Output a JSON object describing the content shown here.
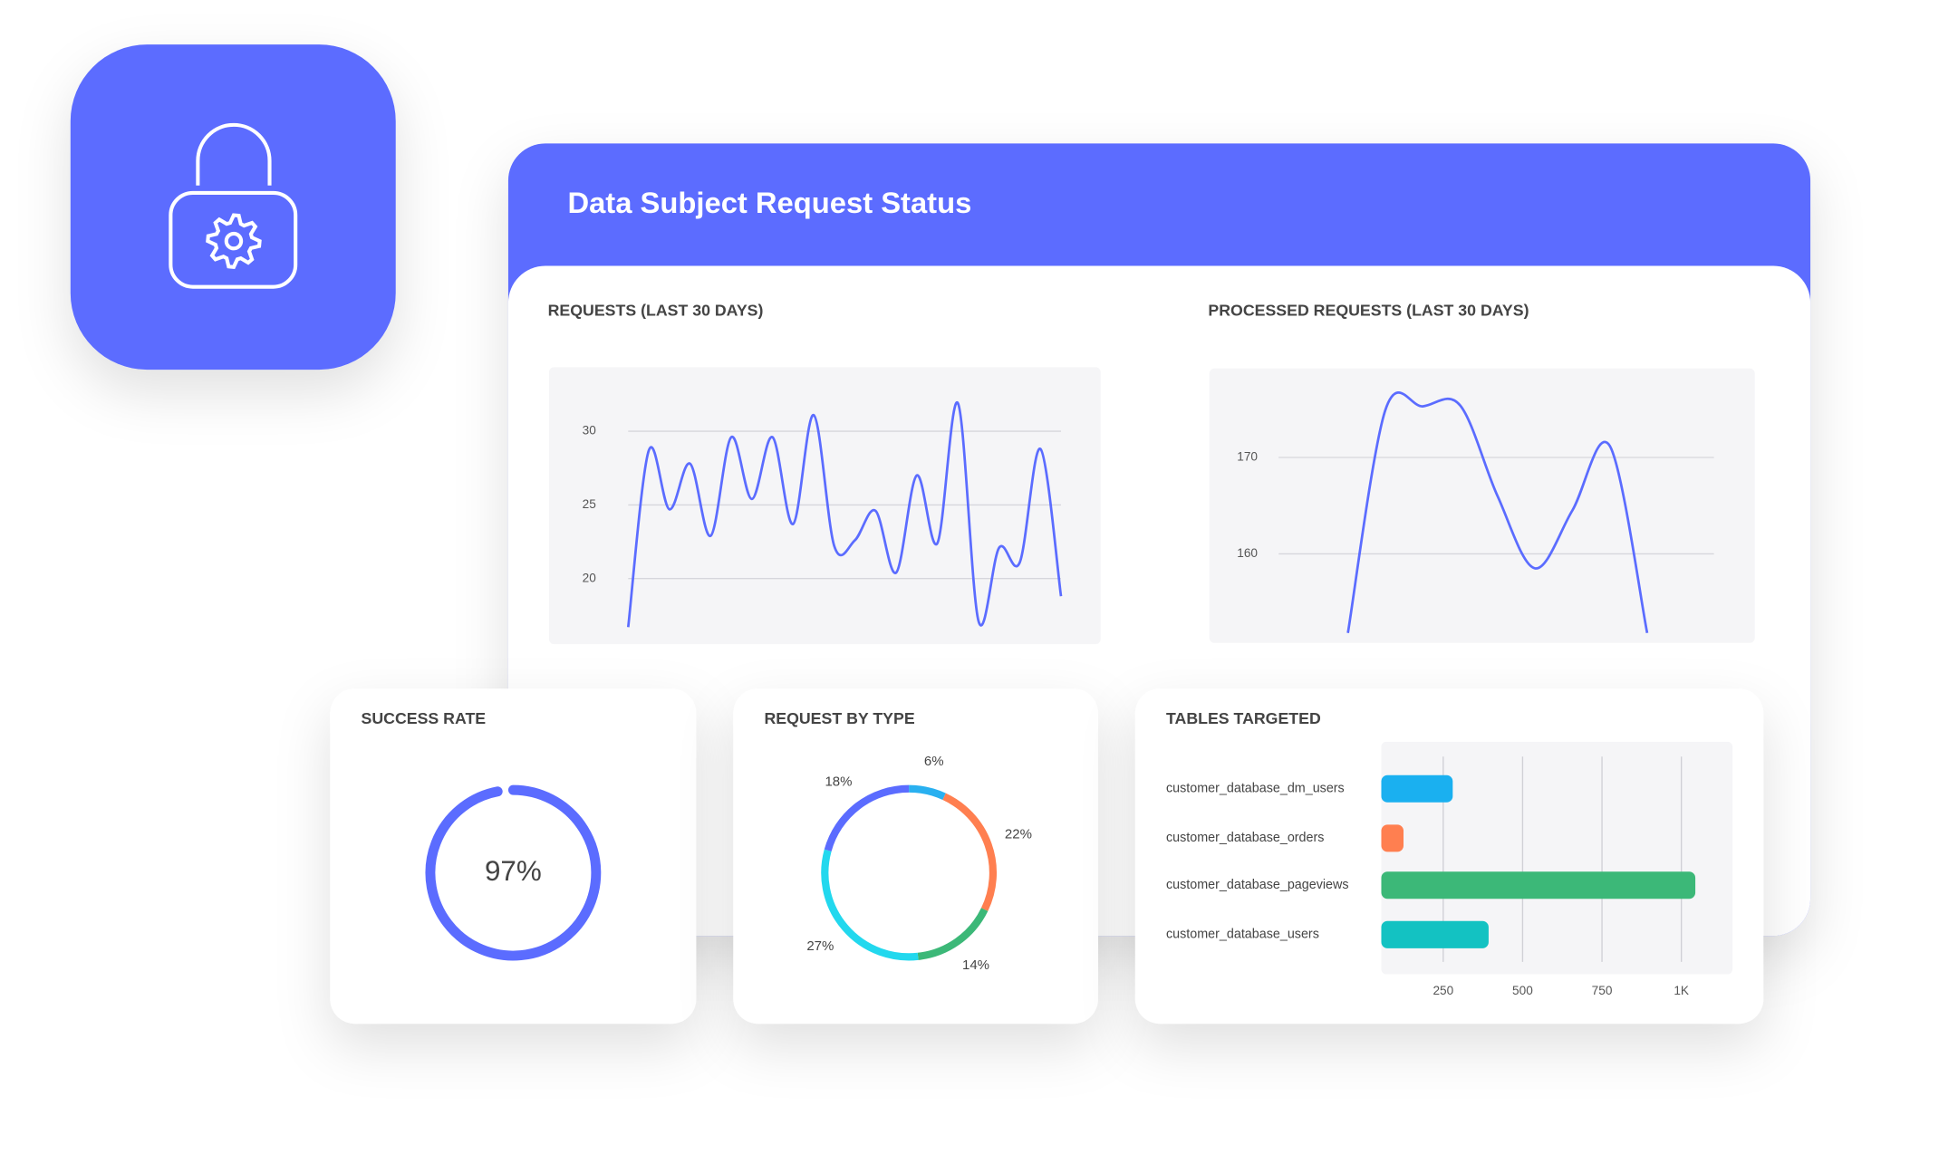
{
  "header": {
    "title": "Data Subject Request Status"
  },
  "chart_data": [
    {
      "type": "line",
      "title": "REQUESTS (LAST 30 DAYS)",
      "color": "#5b6cff",
      "values": [
        16.7,
        28.7,
        24.7,
        27.8,
        22.9,
        29.6,
        25.4,
        29.6,
        23.7,
        31.1,
        22.2,
        22.6,
        24.6,
        20.4,
        27.0,
        22.4,
        31.9,
        17.1,
        22.1,
        21.1,
        28.8,
        18.8
      ],
      "ylim": [
        16,
        32
      ],
      "yticks": [
        20,
        25,
        30
      ],
      "grid": true
    },
    {
      "type": "line",
      "title": "PROCESSED REQUESTS (LAST 30 DAYS)",
      "color": "#5b6cff",
      "values": [
        151.8,
        174.9,
        175.3,
        175.4,
        166,
        158.5,
        164.5,
        171.2,
        151.8
      ],
      "ylim": [
        151,
        177
      ],
      "yticks": [
        160,
        170
      ],
      "grid": true
    },
    {
      "type": "gauge",
      "title": "SUCCESS RATE",
      "color": "#5b6cff",
      "values": [
        97
      ],
      "value_labels": [
        "97%"
      ],
      "ylim": [
        0,
        100
      ]
    },
    {
      "type": "donut",
      "title": "REQUEST BY TYPE",
      "values": [
        6,
        22,
        14,
        27,
        18
      ],
      "value_labels": [
        "6%",
        "22%",
        "14%",
        "27%",
        "18%"
      ],
      "colors": [
        "#29b0f0",
        "#ff7f50",
        "#3cb878",
        "#22d8ee",
        "#5b6cff"
      ]
    },
    {
      "type": "hbar",
      "title": "TABLES TARGETED",
      "categories": [
        "customer_database_dm_users",
        "customer_database_orders",
        "customer_database_pageviews",
        "customer_database_users"
      ],
      "values": [
        280,
        125,
        1044,
        393
      ],
      "colors": [
        "#1ab0f0",
        "#ff7f50",
        "#3cb878",
        "#13c2c2"
      ],
      "xlim": [
        55,
        1161
      ],
      "xticks": [
        250,
        500,
        750,
        {
          "value": 1000,
          "label": "1K"
        }
      ],
      "grid": true
    }
  ]
}
